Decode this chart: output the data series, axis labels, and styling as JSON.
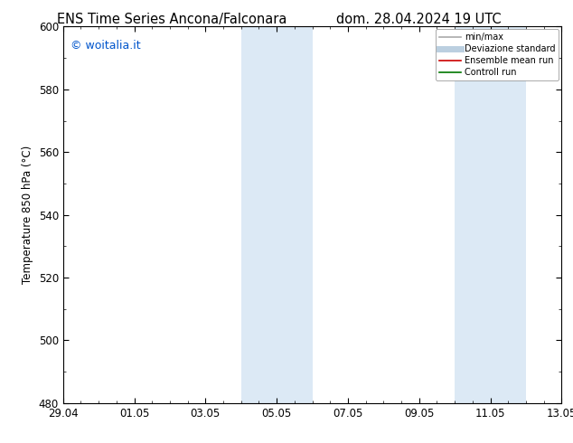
{
  "title_left": "ENS Time Series Ancona/Falconara",
  "title_right": "dom. 28.04.2024 19 UTC",
  "ylabel": "Temperature 850 hPa (°C)",
  "ylim_bottom": 480,
  "ylim_top": 600,
  "yticks": [
    480,
    500,
    520,
    540,
    560,
    580,
    600
  ],
  "x_start_day": 0,
  "x_end_day": 14,
  "xtick_major_positions": [
    0,
    2,
    4,
    6,
    8,
    10,
    12,
    14
  ],
  "xtick_major_labels": [
    "29.04",
    "01.05",
    "03.05",
    "05.05",
    "07.05",
    "09.05",
    "11.05",
    "13.05"
  ],
  "background_color": "#ffffff",
  "shaded_regions": [
    {
      "xstart": 5.0,
      "xend": 7.0,
      "color": "#dce9f5"
    },
    {
      "xstart": 11.0,
      "xend": 13.0,
      "color": "#dce9f5"
    }
  ],
  "watermark_text": "© woitalia.it",
  "watermark_color": "#0055cc",
  "legend_items": [
    {
      "label": "min/max",
      "color": "#aaaaaa",
      "lw": 1.2,
      "style": "solid"
    },
    {
      "label": "Deviazione standard",
      "color": "#bbcfe0",
      "lw": 5,
      "style": "solid"
    },
    {
      "label": "Ensemble mean run",
      "color": "#cc0000",
      "lw": 1.2,
      "style": "solid"
    },
    {
      "label": "Controll run",
      "color": "#007700",
      "lw": 1.2,
      "style": "solid"
    }
  ],
  "spine_color": "#000000",
  "spine_linewidth": 0.8,
  "tick_fontsize": 8.5,
  "label_fontsize": 8.5,
  "title_fontsize": 10.5,
  "minor_tick_count": 3
}
